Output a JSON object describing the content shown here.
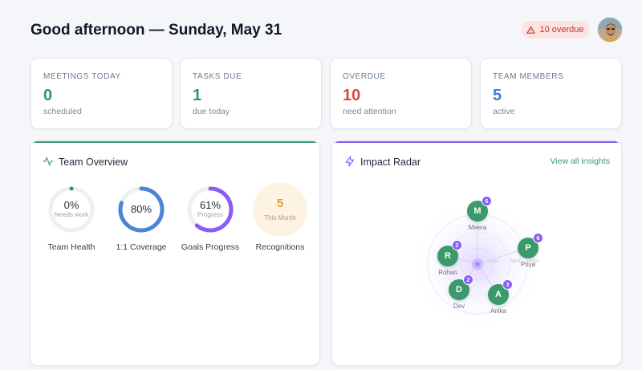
{
  "header": {
    "greeting": "Good afternoon — Sunday, May 31",
    "overdue_badge": "10 overdue"
  },
  "stats": [
    {
      "label": "MEETINGS TODAY",
      "value": "0",
      "sub": "scheduled",
      "color": "#2e9a63"
    },
    {
      "label": "TASKS DUE",
      "value": "1",
      "sub": "due today",
      "color": "#2e9a63"
    },
    {
      "label": "OVERDUE",
      "value": "10",
      "sub": "need attention",
      "color": "#d94848"
    },
    {
      "label": "TEAM MEMBERS",
      "value": "5",
      "sub": "active",
      "color": "#3b82d6"
    }
  ],
  "team_overview": {
    "title": "Team Overview",
    "icon": "activity-icon",
    "accent": "#3a9c6e",
    "metrics": [
      {
        "value": "0%",
        "sub": "Needs work",
        "label": "Team Health",
        "percent": 0,
        "color": "#2e9a63"
      },
      {
        "value": "80%",
        "sub": "",
        "label": "1:1 Coverage",
        "percent": 80,
        "color": "#4a85d8"
      },
      {
        "value": "61%",
        "sub": "Progress",
        "label": "Goals Progress",
        "percent": 61,
        "color": "#8b5cf6"
      }
    ],
    "recognitions": {
      "value": "5",
      "sub": "This Month",
      "label": "Recognitions"
    }
  },
  "impact_radar": {
    "title": "Impact Radar",
    "icon": "lightning-icon",
    "accent": "#8b5cf6",
    "view_all": "View all insights",
    "ring_labels": [
      "Low",
      "Med",
      "High"
    ],
    "members": [
      {
        "initial": "M",
        "name": "Meera",
        "count": "6"
      },
      {
        "initial": "P",
        "name": "Priya",
        "count": "6"
      },
      {
        "initial": "R",
        "name": "Rohan",
        "count": "2"
      },
      {
        "initial": "D",
        "name": "Dev",
        "count": "2"
      },
      {
        "initial": "A",
        "name": "Anika",
        "count": "3"
      }
    ]
  }
}
